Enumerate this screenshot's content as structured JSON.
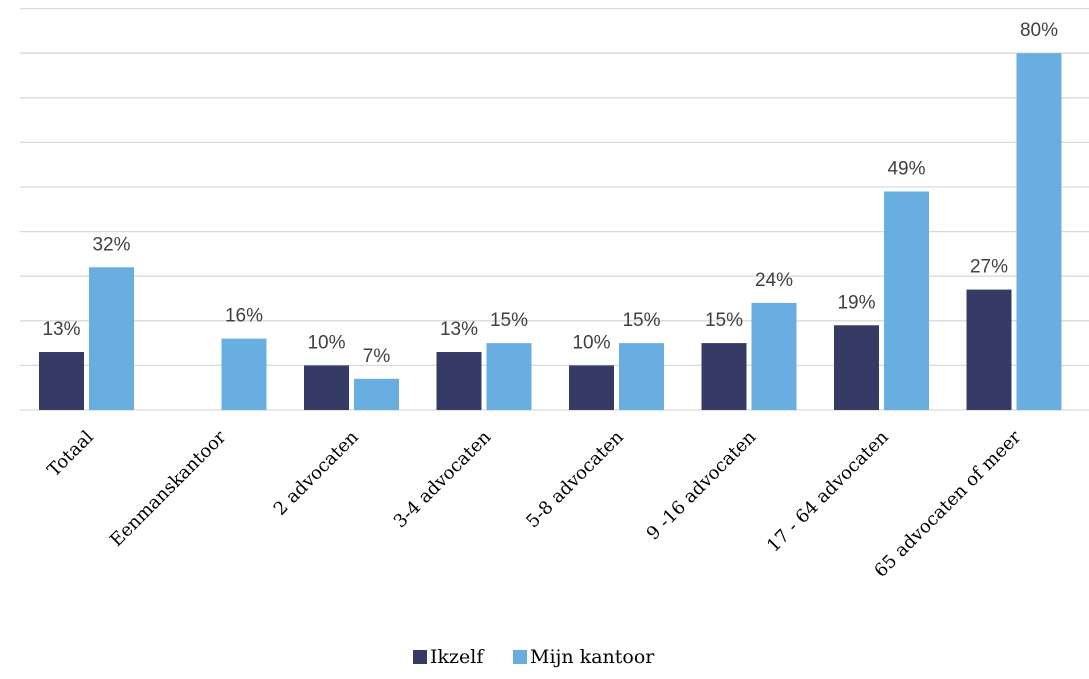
{
  "chart_data": {
    "type": "bar",
    "categories": [
      "Totaal",
      "Eenmanskantoor",
      "2 advocaten",
      "3-4 advocaten",
      "5-8 advocaten",
      "9 -16 advocaten",
      "17 - 64 advocaten",
      "65 advocaten of meer"
    ],
    "series": [
      {
        "name": "Ikzelf",
        "color": "#363b66",
        "values": [
          13,
          null,
          10,
          13,
          10,
          15,
          19,
          27
        ],
        "labels": [
          "13%",
          "",
          "10%",
          "13%",
          "10%",
          "15%",
          "19%",
          "27%"
        ]
      },
      {
        "name": "Mijn kantoor",
        "color": "#69aee0",
        "values": [
          32,
          16,
          7,
          15,
          15,
          24,
          49,
          80
        ],
        "labels": [
          "32%",
          "16%",
          "7%",
          "15%",
          "15%",
          "24%",
          "49%",
          "80%"
        ]
      }
    ],
    "ylim": [
      0,
      90
    ],
    "grid": true,
    "legend": "bottom-center"
  }
}
